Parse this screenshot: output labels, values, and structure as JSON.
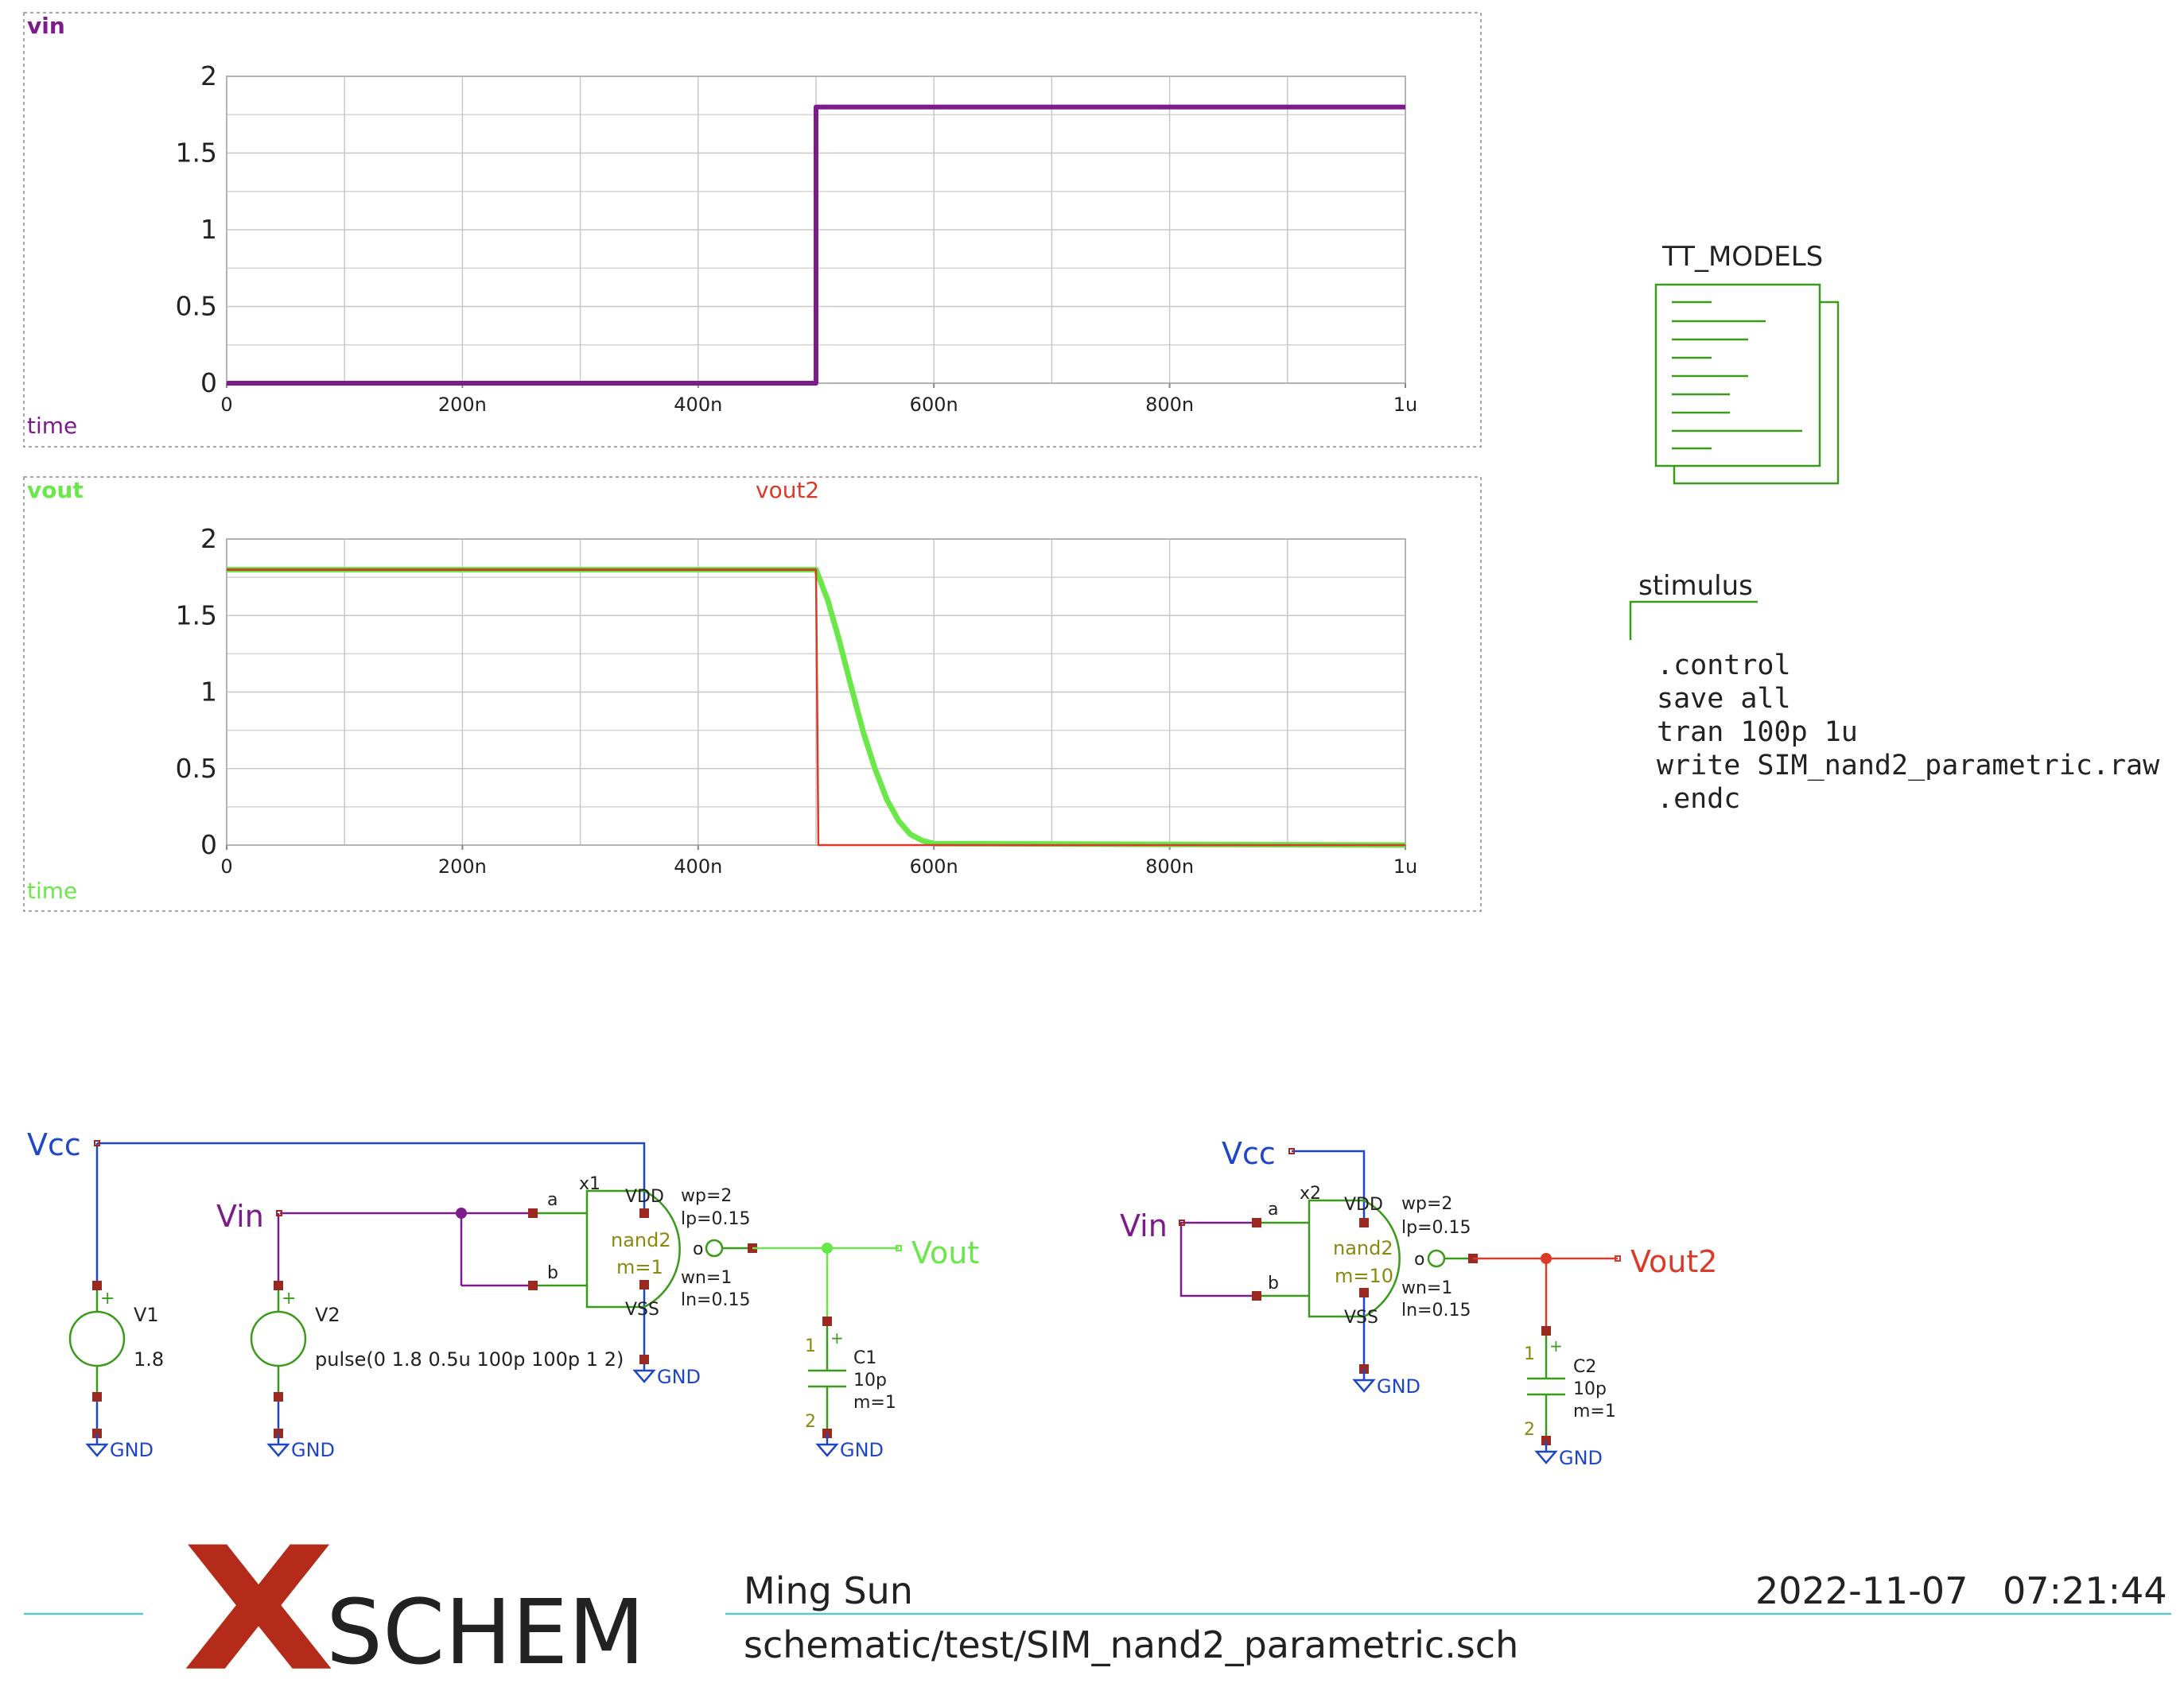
{
  "colors": {
    "vin": "#7d1a8c",
    "vout": "#6ae84a",
    "vout2": "#d93a2a",
    "vcc": "#1e46c8",
    "gnd": "#1e46c8",
    "wire_green": "#3a9a1a",
    "pin": "#9a2a20",
    "device_text": "#8a8a10",
    "grid": "#c8c8c8",
    "teal": "#5ac8c8",
    "logo_x": "#b52b1a"
  },
  "graph1": {
    "signal": "vin",
    "xlabel": "time",
    "xticks": [
      "0",
      "200n",
      "400n",
      "600n",
      "800n",
      "1u"
    ],
    "yticks": [
      "0",
      "0.5",
      "1",
      "1.5",
      "2"
    ]
  },
  "graph2": {
    "signal1": "vout",
    "signal2": "vout2",
    "xlabel": "time",
    "xticks": [
      "0",
      "200n",
      "400n",
      "600n",
      "800n",
      "1u"
    ],
    "yticks": [
      "0",
      "0.5",
      "1",
      "1.5",
      "2"
    ]
  },
  "chart_data": [
    {
      "type": "line",
      "x_unit": "s",
      "xlim": [
        0,
        1e-06
      ],
      "ylim": [
        0,
        2
      ],
      "grid": true,
      "series": [
        {
          "name": "vin",
          "x": [
            0,
            5e-07,
            5e-07,
            1e-06
          ],
          "y": [
            0,
            0,
            1.8,
            1.8
          ]
        }
      ]
    },
    {
      "type": "line",
      "x_unit": "s",
      "xlim": [
        0,
        1e-06
      ],
      "ylim": [
        0,
        2
      ],
      "grid": true,
      "series": [
        {
          "name": "vout",
          "x": [
            0,
            5e-07,
            5.1e-07,
            5.2e-07,
            5.3e-07,
            5.4e-07,
            5.5e-07,
            5.6e-07,
            5.7e-07,
            5.8e-07,
            5.9e-07,
            6e-07,
            1e-06
          ],
          "y": [
            1.8,
            1.8,
            1.6,
            1.33,
            1.03,
            0.74,
            0.5,
            0.3,
            0.16,
            0.07,
            0.03,
            0.01,
            0
          ]
        },
        {
          "name": "vout2",
          "x": [
            0,
            5e-07,
            5.02e-07,
            1e-06
          ],
          "y": [
            1.8,
            1.8,
            0,
            0
          ]
        }
      ]
    }
  ],
  "models": {
    "label": "TT_MODELS"
  },
  "stimulus": {
    "label": "stimulus",
    "lines": [
      ".control",
      "save all",
      "tran 100p 1u",
      "write SIM_nand2_parametric.raw",
      ".endc"
    ]
  },
  "circuit1": {
    "vcc": "Vcc",
    "vin": "Vin",
    "vout": "Vout",
    "v1_name": "V1",
    "v1_value": "1.8",
    "v2_name": "V2",
    "v2_value": "pulse(0 1.8 0.5u 100p 100p 1 2)",
    "x_name": "x1",
    "gate_type": "nand2",
    "gate_m": "m=1",
    "pin_a": "a",
    "pin_b": "b",
    "pin_o": "o",
    "pin_vdd": "VDD",
    "pin_vss": "VSS",
    "wp": "wp=2",
    "lp": "lp=0.15",
    "wn": "wn=1",
    "ln": "ln=0.15",
    "c_name": "C1",
    "c_value": "10p",
    "c_m": "m=1",
    "c_pin1": "1",
    "c_pin2": "2",
    "gnd": "GND"
  },
  "circuit2": {
    "vcc": "Vcc",
    "vin": "Vin",
    "vout": "Vout2",
    "x_name": "x2",
    "gate_type": "nand2",
    "gate_m": "m=10",
    "pin_a": "a",
    "pin_b": "b",
    "pin_o": "o",
    "pin_vdd": "VDD",
    "pin_vss": "VSS",
    "wp": "wp=2",
    "lp": "lp=0.15",
    "wn": "wn=1",
    "ln": "ln=0.15",
    "c_name": "C2",
    "c_value": "10p",
    "c_m": "m=1",
    "c_pin1": "1",
    "c_pin2": "2",
    "gnd": "GND"
  },
  "title_block": {
    "logo_x": "X",
    "logo_text": "SCHEM",
    "author": "Ming Sun",
    "date": "2022-11-07",
    "time": "07:21:44",
    "path": "schematic/test/SIM_nand2_parametric.sch"
  }
}
